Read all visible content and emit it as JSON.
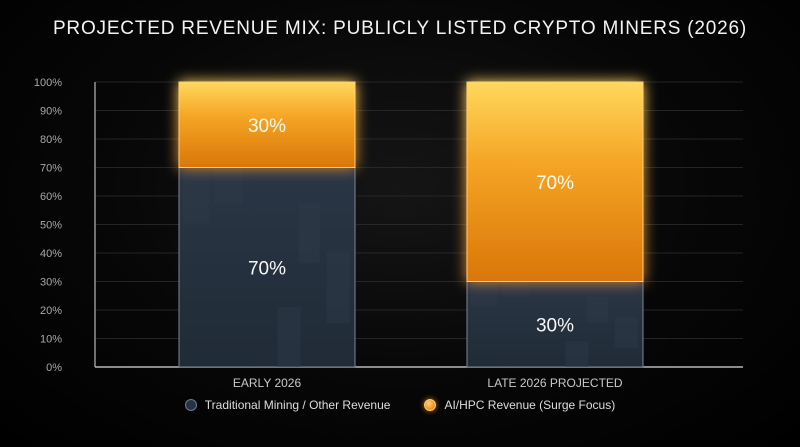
{
  "chart_data": {
    "type": "bar",
    "stacked": true,
    "title": "PROJECTED REVENUE MIX: PUBLICLY LISTED CRYPTO MINERS (2026)",
    "xlabel": "",
    "ylabel": "",
    "categories": [
      "EARLY 2026",
      "LATE 2026 PROJECTED"
    ],
    "series": [
      {
        "name": "Traditional Mining / Other Revenue",
        "values": [
          70,
          30
        ],
        "labels": [
          "70%",
          "30%"
        ],
        "color": "#263342"
      },
      {
        "name": "AI/HPC Revenue (Surge Focus)",
        "values": [
          30,
          70
        ],
        "labels": [
          "30%",
          "70%"
        ],
        "color": "#f39a1f"
      }
    ],
    "ylim": [
      0,
      100
    ],
    "y_ticks": [
      "0%",
      "10%",
      "20%",
      "30%",
      "40%",
      "50%",
      "60%",
      "70%",
      "80%",
      "90%",
      "100%"
    ],
    "grid": true,
    "legend_position": "bottom"
  },
  "legend": {
    "items": [
      {
        "label": "Traditional Mining / Other Revenue",
        "icon": "blue-circle-icon"
      },
      {
        "label": "AI/HPC Revenue (Surge Focus)",
        "icon": "orange-circle-icon"
      }
    ]
  },
  "colors": {
    "background": "#000000",
    "traditional": "#263342",
    "ai_hpc": "#f39a1f",
    "glow": "#ffcf72"
  }
}
